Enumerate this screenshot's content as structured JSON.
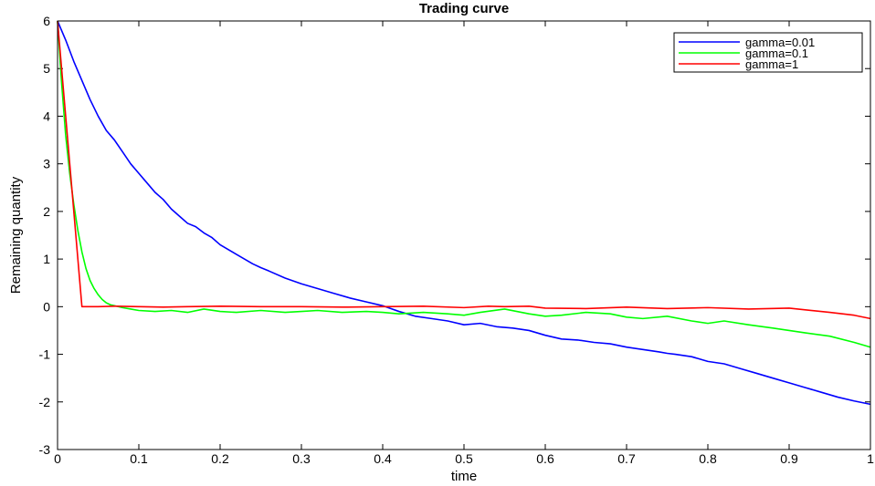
{
  "chart_data": {
    "type": "line",
    "title": "Trading curve",
    "xlabel": "time",
    "ylabel": "Remaining quantity",
    "xlim": [
      0,
      1
    ],
    "ylim": [
      -3,
      6
    ],
    "xticks": [
      0,
      0.1,
      0.2,
      0.3,
      0.4,
      0.5,
      0.6,
      0.7,
      0.8,
      0.9,
      1
    ],
    "xtick_labels": [
      "0",
      "0.1",
      "0.2",
      "0.3",
      "0.4",
      "0.5",
      "0.6",
      "0.7",
      "0.8",
      "0.9",
      "1"
    ],
    "yticks": [
      -3,
      -2,
      -1,
      0,
      1,
      2,
      3,
      4,
      5,
      6
    ],
    "ytick_labels": [
      "-3",
      "-2",
      "-1",
      "0",
      "1",
      "2",
      "3",
      "4",
      "5",
      "6"
    ],
    "grid": false,
    "legend_position": "top-right",
    "series": [
      {
        "name": "gamma=0.01",
        "color": "#0000ff",
        "x": [
          0,
          0.01,
          0.02,
          0.03,
          0.04,
          0.05,
          0.06,
          0.07,
          0.08,
          0.09,
          0.1,
          0.11,
          0.12,
          0.13,
          0.14,
          0.15,
          0.16,
          0.17,
          0.18,
          0.19,
          0.2,
          0.22,
          0.24,
          0.25,
          0.26,
          0.28,
          0.3,
          0.32,
          0.34,
          0.36,
          0.38,
          0.4,
          0.42,
          0.44,
          0.46,
          0.48,
          0.5,
          0.52,
          0.54,
          0.56,
          0.58,
          0.6,
          0.62,
          0.64,
          0.66,
          0.68,
          0.7,
          0.72,
          0.74,
          0.75,
          0.76,
          0.78,
          0.8,
          0.82,
          0.84,
          0.86,
          0.88,
          0.9,
          0.92,
          0.94,
          0.96,
          0.98,
          1.0
        ],
        "y": [
          6.0,
          5.6,
          5.15,
          4.75,
          4.35,
          4.0,
          3.7,
          3.5,
          3.25,
          3.0,
          2.8,
          2.6,
          2.4,
          2.25,
          2.05,
          1.9,
          1.75,
          1.68,
          1.55,
          1.45,
          1.3,
          1.1,
          0.9,
          0.82,
          0.75,
          0.6,
          0.48,
          0.38,
          0.28,
          0.18,
          0.1,
          0.02,
          -0.1,
          -0.2,
          -0.25,
          -0.3,
          -0.38,
          -0.35,
          -0.42,
          -0.45,
          -0.5,
          -0.6,
          -0.68,
          -0.7,
          -0.75,
          -0.78,
          -0.85,
          -0.9,
          -0.95,
          -0.98,
          -1.0,
          -1.05,
          -1.15,
          -1.2,
          -1.3,
          -1.4,
          -1.5,
          -1.6,
          -1.7,
          -1.8,
          -1.9,
          -1.98,
          -2.05
        ]
      },
      {
        "name": "gamma=0.1",
        "color": "#00ff00",
        "x": [
          0,
          0.005,
          0.01,
          0.015,
          0.02,
          0.025,
          0.03,
          0.035,
          0.04,
          0.045,
          0.05,
          0.055,
          0.06,
          0.065,
          0.07,
          0.075,
          0.08,
          0.09,
          0.1,
          0.12,
          0.14,
          0.16,
          0.18,
          0.2,
          0.22,
          0.25,
          0.28,
          0.3,
          0.32,
          0.35,
          0.38,
          0.4,
          0.42,
          0.45,
          0.48,
          0.5,
          0.52,
          0.55,
          0.58,
          0.6,
          0.62,
          0.65,
          0.68,
          0.7,
          0.72,
          0.75,
          0.78,
          0.8,
          0.82,
          0.85,
          0.88,
          0.9,
          0.92,
          0.95,
          0.98,
          1.0
        ],
        "y": [
          6.0,
          4.7,
          3.6,
          2.8,
          2.15,
          1.6,
          1.15,
          0.8,
          0.55,
          0.38,
          0.25,
          0.15,
          0.08,
          0.04,
          0.02,
          0.0,
          -0.02,
          -0.05,
          -0.08,
          -0.1,
          -0.08,
          -0.12,
          -0.05,
          -0.1,
          -0.12,
          -0.08,
          -0.12,
          -0.1,
          -0.08,
          -0.12,
          -0.1,
          -0.12,
          -0.15,
          -0.12,
          -0.15,
          -0.18,
          -0.12,
          -0.05,
          -0.15,
          -0.2,
          -0.18,
          -0.12,
          -0.15,
          -0.22,
          -0.25,
          -0.2,
          -0.3,
          -0.35,
          -0.3,
          -0.38,
          -0.45,
          -0.5,
          -0.55,
          -0.62,
          -0.75,
          -0.85
        ]
      },
      {
        "name": "gamma=1",
        "color": "#ff0000",
        "x": [
          0,
          0.03,
          0.05,
          0.07,
          0.1,
          0.13,
          0.16,
          0.2,
          0.25,
          0.3,
          0.35,
          0.4,
          0.45,
          0.5,
          0.53,
          0.55,
          0.58,
          0.6,
          0.65,
          0.7,
          0.75,
          0.8,
          0.85,
          0.9,
          0.95,
          0.98,
          1.0
        ],
        "y": [
          6.0,
          0.0,
          0.0,
          0.01,
          0.0,
          -0.01,
          0.0,
          0.01,
          0.0,
          0.0,
          -0.01,
          0.0,
          0.01,
          -0.02,
          0.01,
          0.0,
          0.01,
          -0.03,
          -0.04,
          -0.01,
          -0.04,
          -0.02,
          -0.05,
          -0.03,
          -0.12,
          -0.18,
          -0.25
        ]
      }
    ]
  }
}
